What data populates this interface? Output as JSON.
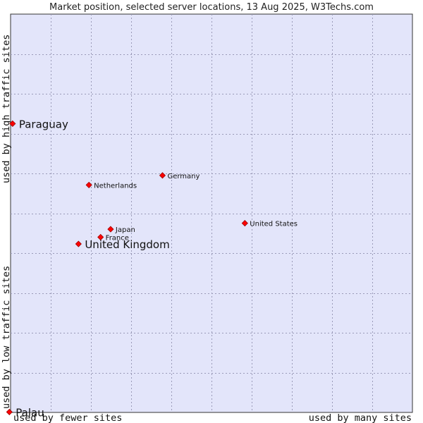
{
  "chart_data": {
    "type": "scatter",
    "title": "Market position, selected server locations, 13 Aug 2025, W3Techs.com",
    "xlabel_low": "used by fewer sites",
    "xlabel_high": "used by many sites",
    "ylabel_low": "used by low traffic sites",
    "ylabel_high": "used by high traffic sites",
    "xlim": [
      0,
      100
    ],
    "ylim": [
      0,
      100
    ],
    "grid": true,
    "points": [
      {
        "label": "Paraguay",
        "x": 0.5,
        "y": 72.5,
        "highlight": true
      },
      {
        "label": "Germany",
        "x": 37.8,
        "y": 59.5,
        "highlight": false
      },
      {
        "label": "Netherlands",
        "x": 19.5,
        "y": 57.1,
        "highlight": false
      },
      {
        "label": "United States",
        "x": 58.3,
        "y": 47.5,
        "highlight": false
      },
      {
        "label": "Japan",
        "x": 24.9,
        "y": 46.0,
        "highlight": false
      },
      {
        "label": "France",
        "x": 22.4,
        "y": 44.0,
        "highlight": false
      },
      {
        "label": "United Kingdom",
        "x": 16.9,
        "y": 42.3,
        "highlight": true
      },
      {
        "label": "Palau",
        "x": -0.3,
        "y": 0.1,
        "highlight": true
      }
    ]
  }
}
